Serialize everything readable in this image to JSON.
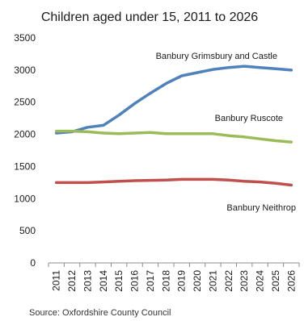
{
  "chart_data": {
    "type": "line",
    "title": "Children aged under 15, 2011 to 2026",
    "xlabel": "",
    "ylabel": "",
    "categories": [
      "2011",
      "2012",
      "2013",
      "2014",
      "2015",
      "2016",
      "2017",
      "2018",
      "2019",
      "2020",
      "2021",
      "2022",
      "2023",
      "2024",
      "2025",
      "2026"
    ],
    "ylim": [
      0,
      3500
    ],
    "yticks": [
      0,
      500,
      1000,
      1500,
      2000,
      2500,
      3000,
      3500
    ],
    "grid": false,
    "legend": "none",
    "series": [
      {
        "name": "Banbury Grimsbury and Castle",
        "color": "#4F81BD",
        "values": [
          2020,
          2040,
          2110,
          2140,
          2300,
          2480,
          2640,
          2790,
          2910,
          2960,
          3010,
          3040,
          3060,
          3040,
          3020,
          3000
        ]
      },
      {
        "name": "Banbury Ruscote",
        "color": "#9BBB59",
        "values": [
          2050,
          2050,
          2040,
          2020,
          2010,
          2020,
          2030,
          2010,
          2010,
          2010,
          2010,
          1980,
          1960,
          1930,
          1900,
          1880
        ]
      },
      {
        "name": "Banbury Neithrop",
        "color": "#C0504D",
        "values": [
          1250,
          1250,
          1250,
          1260,
          1270,
          1280,
          1285,
          1290,
          1300,
          1300,
          1300,
          1290,
          1270,
          1260,
          1240,
          1210
        ]
      }
    ]
  },
  "source": "Source: Oxfordshire County Council"
}
